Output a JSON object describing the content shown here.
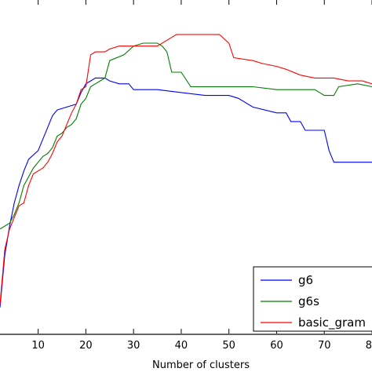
{
  "chart_data": {
    "type": "line",
    "xlabel": "Number of clusters",
    "ylabel": "",
    "title": "",
    "xlim": [
      2,
      80
    ],
    "ylim": [
      0,
      100
    ],
    "xticks": [
      "10",
      "20",
      "30",
      "40",
      "50",
      "60",
      "70",
      "80"
    ],
    "xtick_values": [
      10,
      20,
      30,
      40,
      50,
      60,
      70,
      80
    ],
    "grid": false,
    "legend_position": "bottom-right",
    "series": [
      {
        "name": "g6",
        "color": "#0000ff",
        "points": [
          [
            2,
            9
          ],
          [
            3,
            27
          ],
          [
            4,
            37
          ],
          [
            5,
            45
          ],
          [
            6,
            51
          ],
          [
            7,
            56
          ],
          [
            8,
            60
          ],
          [
            10,
            63
          ],
          [
            11,
            67
          ],
          [
            12,
            71
          ],
          [
            13,
            75
          ],
          [
            14,
            77
          ],
          [
            16,
            78
          ],
          [
            18,
            79
          ],
          [
            19,
            83
          ],
          [
            20,
            86
          ],
          [
            21,
            87
          ],
          [
            22,
            88
          ],
          [
            24,
            88
          ],
          [
            25,
            87
          ],
          [
            27,
            86
          ],
          [
            29,
            86
          ],
          [
            30,
            84
          ],
          [
            32,
            84
          ],
          [
            35,
            84
          ],
          [
            40,
            83
          ],
          [
            45,
            82
          ],
          [
            50,
            82
          ],
          [
            52,
            81
          ],
          [
            55,
            78
          ],
          [
            60,
            76
          ],
          [
            62,
            76
          ],
          [
            63,
            73
          ],
          [
            65,
            73
          ],
          [
            66,
            70
          ],
          [
            70,
            70
          ],
          [
            71,
            63
          ],
          [
            72,
            59
          ],
          [
            80,
            59
          ]
        ]
      },
      {
        "name": "g6s",
        "color": "#008000",
        "points": [
          [
            2,
            36
          ],
          [
            4,
            38
          ],
          [
            5,
            41
          ],
          [
            6,
            45
          ],
          [
            7,
            51
          ],
          [
            8,
            54
          ],
          [
            9,
            57
          ],
          [
            10,
            59
          ],
          [
            11,
            61
          ],
          [
            12,
            62
          ],
          [
            13,
            64
          ],
          [
            14,
            68
          ],
          [
            15,
            69
          ],
          [
            16,
            71
          ],
          [
            17,
            72
          ],
          [
            18,
            74
          ],
          [
            19,
            79
          ],
          [
            20,
            81
          ],
          [
            21,
            85
          ],
          [
            22,
            86
          ],
          [
            23,
            87
          ],
          [
            24,
            88
          ],
          [
            25,
            94
          ],
          [
            28,
            96
          ],
          [
            30,
            99
          ],
          [
            32,
            100
          ],
          [
            35,
            100
          ],
          [
            36,
            99
          ],
          [
            37,
            97
          ],
          [
            38,
            90
          ],
          [
            40,
            90
          ],
          [
            42,
            85
          ],
          [
            45,
            85
          ],
          [
            50,
            85
          ],
          [
            55,
            85
          ],
          [
            60,
            84
          ],
          [
            65,
            84
          ],
          [
            68,
            84
          ],
          [
            70,
            82
          ],
          [
            72,
            82
          ],
          [
            73,
            85
          ],
          [
            77,
            86
          ],
          [
            80,
            85
          ]
        ]
      },
      {
        "name": "basic_gram",
        "color": "#ff0000",
        "points": [
          [
            2,
            10
          ],
          [
            3,
            29
          ],
          [
            4,
            36
          ],
          [
            5,
            40
          ],
          [
            6,
            44
          ],
          [
            7,
            45
          ],
          [
            8,
            51
          ],
          [
            9,
            55
          ],
          [
            10,
            56
          ],
          [
            11,
            57
          ],
          [
            12,
            59
          ],
          [
            13,
            62
          ],
          [
            14,
            66
          ],
          [
            15,
            68
          ],
          [
            16,
            72
          ],
          [
            17,
            76
          ],
          [
            18,
            79
          ],
          [
            19,
            84
          ],
          [
            20,
            85
          ],
          [
            21,
            96
          ],
          [
            22,
            97
          ],
          [
            24,
            97
          ],
          [
            25,
            98
          ],
          [
            27,
            99
          ],
          [
            30,
            99
          ],
          [
            35,
            99
          ],
          [
            37,
            101
          ],
          [
            39,
            103
          ],
          [
            41,
            103
          ],
          [
            43,
            103
          ],
          [
            46,
            103
          ],
          [
            48,
            103
          ],
          [
            50,
            100
          ],
          [
            51,
            95
          ],
          [
            55,
            94
          ],
          [
            57,
            93
          ],
          [
            60,
            92
          ],
          [
            62,
            91
          ],
          [
            65,
            89
          ],
          [
            68,
            88
          ],
          [
            70,
            88
          ],
          [
            72,
            88
          ],
          [
            75,
            87
          ],
          [
            78,
            87
          ],
          [
            80,
            86
          ]
        ]
      }
    ]
  }
}
